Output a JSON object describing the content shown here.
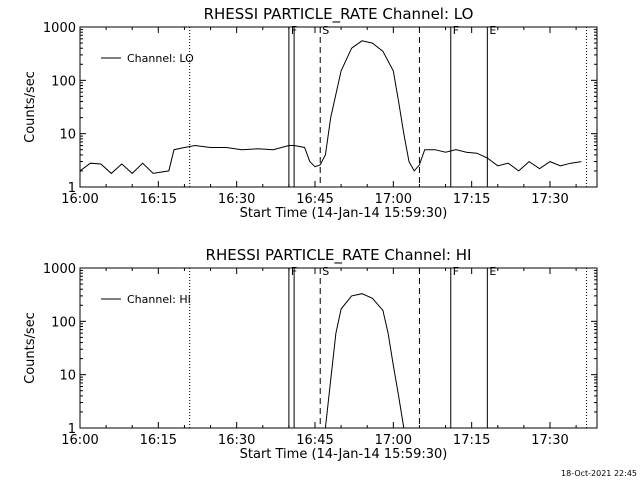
{
  "footer": {
    "timestamp": "18-Oct-2021 22:45"
  },
  "chart_data": [
    {
      "type": "line",
      "title": "RHESSI PARTICLE_RATE Channel: LO",
      "xlabel": "Start Time (14-Jan-14 15:59:30)",
      "ylabel": "Counts/sec",
      "yscale": "log",
      "ylim": [
        1,
        1000
      ],
      "xlim": [
        "16:00",
        "17:39"
      ],
      "xticks": [
        "16:00",
        "16:15",
        "16:30",
        "16:45",
        "17:00",
        "17:15",
        "17:30"
      ],
      "yticks": [
        "1",
        "10",
        "100",
        "1000"
      ],
      "legend": {
        "label": "Channel: LO",
        "position": "top-left"
      },
      "markers": [
        {
          "time": "16:21",
          "style": "dotted",
          "label": ""
        },
        {
          "time": "16:40",
          "style": "solid",
          "label": "F"
        },
        {
          "time": "16:41",
          "style": "solid",
          "label": ""
        },
        {
          "time": "16:46",
          "style": "dashed",
          "label": "S"
        },
        {
          "time": "17:05",
          "style": "dashed",
          "label": ""
        },
        {
          "time": "17:11",
          "style": "solid",
          "label": "F"
        },
        {
          "time": "17:18",
          "style": "solid",
          "label": "E"
        },
        {
          "time": "17:37",
          "style": "dotted",
          "label": ""
        }
      ],
      "series": [
        {
          "name": "Channel: LO",
          "x": [
            "16:00",
            "16:02",
            "16:04",
            "16:06",
            "16:08",
            "16:10",
            "16:12",
            "16:14",
            "16:17",
            "16:18",
            "16:20",
            "16:22",
            "16:25",
            "16:28",
            "16:31",
            "16:34",
            "16:37",
            "16:40",
            "16:41",
            "16:43",
            "16:44",
            "16:45",
            "16:46",
            "16:47",
            "16:48",
            "16:50",
            "16:52",
            "16:54",
            "16:56",
            "16:58",
            "17:00",
            "17:01",
            "17:02",
            "17:03",
            "17:04",
            "17:05",
            "17:06",
            "17:08",
            "17:10",
            "17:12",
            "17:14",
            "17:16",
            "17:18",
            "17:20",
            "17:22",
            "17:24",
            "17:26",
            "17:28",
            "17:30",
            "17:32",
            "17:34",
            "17:36"
          ],
          "values": [
            2.0,
            2.8,
            2.7,
            1.8,
            2.7,
            1.8,
            2.8,
            1.8,
            2.0,
            5.0,
            5.5,
            6.0,
            5.5,
            5.5,
            5.0,
            5.2,
            5.0,
            6.0,
            6.0,
            5.5,
            3.0,
            2.4,
            2.6,
            4.0,
            20,
            150,
            400,
            550,
            500,
            350,
            150,
            40,
            10,
            3.0,
            2.0,
            2.6,
            5.0,
            5.0,
            4.5,
            5.0,
            4.5,
            4.3,
            3.5,
            2.5,
            2.8,
            2.0,
            3.0,
            2.2,
            3.0,
            2.5,
            2.8,
            3.0
          ]
        }
      ]
    },
    {
      "type": "line",
      "title": "RHESSI PARTICLE_RATE Channel: HI",
      "xlabel": "Start Time (14-Jan-14 15:59:30)",
      "ylabel": "Counts/sec",
      "yscale": "log",
      "ylim": [
        1,
        1000
      ],
      "xlim": [
        "16:00",
        "17:39"
      ],
      "xticks": [
        "16:00",
        "16:15",
        "16:30",
        "16:45",
        "17:00",
        "17:15",
        "17:30"
      ],
      "yticks": [
        "1",
        "10",
        "100",
        "1000"
      ],
      "legend": {
        "label": "Channel: HI",
        "position": "top-left"
      },
      "markers": [
        {
          "time": "16:21",
          "style": "dotted",
          "label": ""
        },
        {
          "time": "16:40",
          "style": "solid",
          "label": "F"
        },
        {
          "time": "16:41",
          "style": "solid",
          "label": ""
        },
        {
          "time": "16:46",
          "style": "dashed",
          "label": "S"
        },
        {
          "time": "17:05",
          "style": "dashed",
          "label": ""
        },
        {
          "time": "17:11",
          "style": "solid",
          "label": "F"
        },
        {
          "time": "17:18",
          "style": "solid",
          "label": "E"
        },
        {
          "time": "17:37",
          "style": "dotted",
          "label": ""
        }
      ],
      "series": [
        {
          "name": "Channel: HI",
          "x": [
            "16:47",
            "16:48",
            "16:49",
            "16:50",
            "16:52",
            "16:54",
            "16:56",
            "16:58",
            "16:59",
            "17:00",
            "17:01",
            "17:02"
          ],
          "values": [
            1.0,
            8,
            60,
            170,
            300,
            330,
            270,
            160,
            60,
            15,
            4,
            1.0
          ]
        }
      ]
    }
  ]
}
